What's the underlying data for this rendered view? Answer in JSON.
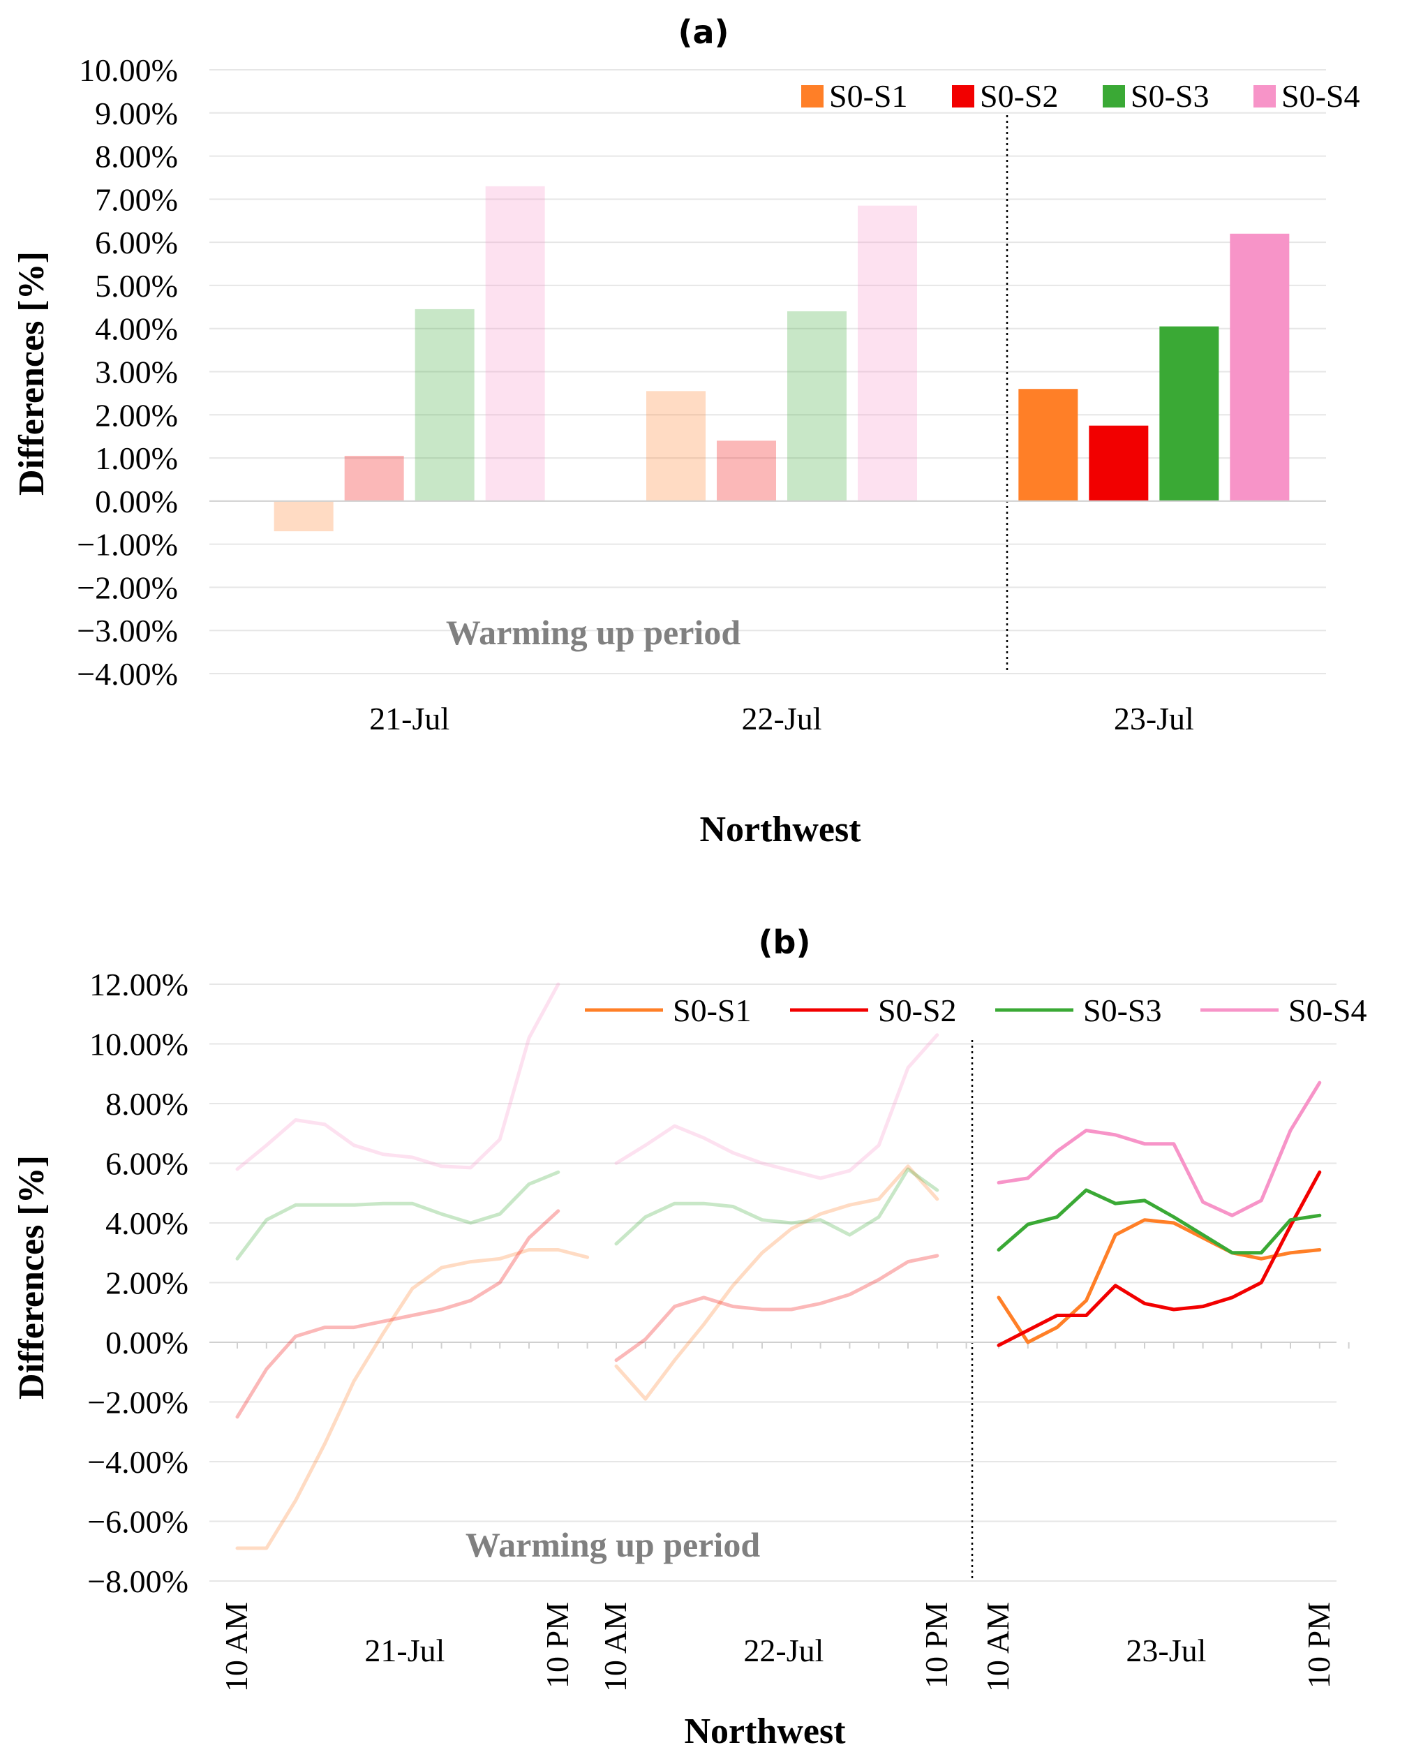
{
  "chart_data": [
    {
      "id": "a",
      "type": "bar",
      "title": "(a)",
      "ylabel": "Differences [%]",
      "xlabel": "Northwest",
      "ylim": [
        -4,
        10
      ],
      "yticks": [
        "−4.00%",
        "−3.00%",
        "−2.00%",
        "−1.00%",
        "0.00%",
        "1.00%",
        "2.00%",
        "3.00%",
        "4.00%",
        "5.00%",
        "6.00%",
        "7.00%",
        "8.00%",
        "9.00%",
        "10.00%"
      ],
      "categories": [
        "21-Jul",
        "22-Jul",
        "23-Jul"
      ],
      "series": [
        {
          "name": "S0-S1",
          "values": [
            -0.7,
            2.55,
            2.6
          ]
        },
        {
          "name": "S0-S2",
          "values": [
            1.05,
            1.4,
            1.75
          ]
        },
        {
          "name": "S0-S3",
          "values": [
            4.45,
            4.4,
            4.05
          ]
        },
        {
          "name": "S0-S4",
          "values": [
            7.3,
            6.85,
            6.2
          ]
        }
      ],
      "faded_categories": [
        "21-Jul",
        "22-Jul"
      ],
      "annotation": "Warming up period"
    },
    {
      "id": "b",
      "type": "line",
      "title": "(b)",
      "ylabel": "Differences [%]",
      "xlabel": "Northwest",
      "ylim": [
        -8,
        12
      ],
      "yticks": [
        "−8.00%",
        "−6.00%",
        "−4.00%",
        "−2.00%",
        "0.00%",
        "2.00%",
        "4.00%",
        "6.00%",
        "8.00%",
        "10.00%",
        "12.00%"
      ],
      "days": [
        {
          "label": "21-Jul",
          "start_label": "10 AM",
          "end_label": "10 PM"
        },
        {
          "label": "22-Jul",
          "start_label": "10 AM",
          "end_label": "10 PM"
        },
        {
          "label": "23-Jul",
          "start_label": "10 AM",
          "end_label": "10 PM"
        }
      ],
      "faded_days": [
        "21-Jul",
        "22-Jul"
      ],
      "series": [
        {
          "name": "S0-S1",
          "values": [
            [
              -6.9,
              -6.9,
              -5.3,
              -3.4,
              -1.3,
              0.3,
              1.8,
              2.5,
              2.7,
              2.8,
              3.1,
              3.1,
              2.85
            ],
            [
              -0.8,
              -1.9,
              -0.6,
              0.6,
              1.9,
              3.0,
              3.8,
              4.3,
              4.6,
              4.8,
              5.9,
              4.8,
              null
            ],
            [
              1.5,
              0.0,
              0.5,
              1.4,
              3.6,
              4.1,
              4.0,
              3.5,
              3.0,
              2.8,
              3.0,
              3.1,
              null
            ]
          ]
        },
        {
          "name": "S0-S2",
          "values": [
            [
              -2.5,
              -0.9,
              0.2,
              0.5,
              0.5,
              0.7,
              0.9,
              1.1,
              1.4,
              2.0,
              3.5,
              4.4,
              null
            ],
            [
              -0.6,
              0.1,
              1.2,
              1.5,
              1.2,
              1.1,
              1.1,
              1.3,
              1.6,
              2.1,
              2.7,
              2.9,
              null
            ],
            [
              -0.1,
              0.4,
              0.9,
              0.9,
              1.9,
              1.3,
              1.1,
              1.2,
              1.5,
              2.0,
              3.9,
              5.7,
              null
            ]
          ]
        },
        {
          "name": "S0-S3",
          "values": [
            [
              2.8,
              4.1,
              4.6,
              4.6,
              4.6,
              4.65,
              4.65,
              4.3,
              4.0,
              4.3,
              5.3,
              5.7,
              null
            ],
            [
              3.3,
              4.2,
              4.65,
              4.65,
              4.55,
              4.1,
              4.0,
              4.1,
              3.6,
              4.2,
              5.8,
              5.1,
              null
            ],
            [
              3.1,
              3.95,
              4.2,
              5.1,
              4.65,
              4.75,
              4.2,
              3.6,
              3.0,
              3.0,
              4.1,
              4.25,
              null
            ]
          ]
        },
        {
          "name": "S0-S4",
          "values": [
            [
              5.8,
              6.6,
              7.45,
              7.3,
              6.6,
              6.3,
              6.2,
              5.9,
              5.85,
              6.8,
              10.2,
              12.0,
              null
            ],
            [
              6.0,
              6.6,
              7.25,
              6.85,
              6.35,
              6.0,
              5.75,
              5.5,
              5.75,
              6.6,
              9.2,
              10.3,
              null
            ],
            [
              5.35,
              5.5,
              6.4,
              7.1,
              6.95,
              6.65,
              6.65,
              4.7,
              4.25,
              4.75,
              7.1,
              8.7,
              null
            ]
          ]
        }
      ],
      "annotation": "Warming up period"
    }
  ],
  "colors": {
    "S0-S1": "#ff7f27",
    "S0-S2": "#f20000",
    "S0-S3": "#3aa935",
    "S0-S4": "#f794c8",
    "faded_opacity": 0.28
  }
}
